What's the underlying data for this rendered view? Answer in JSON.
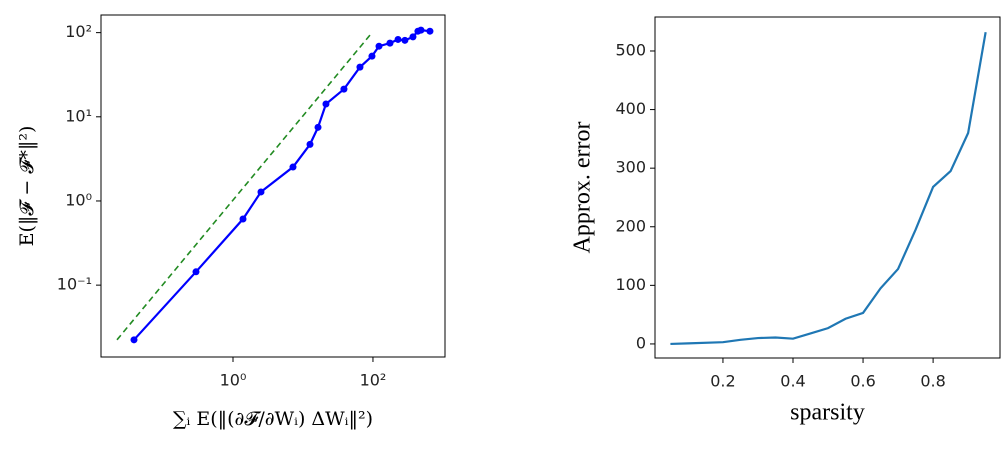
{
  "chart_data": [
    {
      "type": "line",
      "xscale": "log",
      "yscale": "log",
      "ylabel": "E(‖𝓕 − 𝓕*‖²)",
      "xlabel": "∑ᵢ E(‖(∂𝓕/∂Wᵢ) ΔWᵢ‖²)",
      "xlim": [
        0.013,
        1070
      ],
      "ylim": [
        0.014,
        162
      ],
      "xticks": [
        {
          "value": 1,
          "label": "10⁰"
        },
        {
          "value": 100,
          "label": "10²"
        }
      ],
      "yticks": [
        {
          "value": 0.1,
          "label": "10⁻¹"
        },
        {
          "value": 1,
          "label": "10⁰"
        },
        {
          "value": 10,
          "label": "10¹"
        },
        {
          "value": 100,
          "label": "10²"
        }
      ],
      "series": [
        {
          "color": "#0000ff",
          "marker": true,
          "x": [
            0.0385,
            0.296,
            1.39,
            2.51,
            7.2,
            12.6,
            16.4,
            21.3,
            38.5,
            65.2,
            96.8,
            122,
            175,
            228,
            286,
            373,
            439,
            485,
            652
          ],
          "values": [
            0.0224,
            0.144,
            0.61,
            1.28,
            2.53,
            4.7,
            7.5,
            14.2,
            21.3,
            38.9,
            52.5,
            69,
            75,
            83,
            81,
            89,
            104,
            107,
            104
          ]
        },
        {
          "color": "#228b22",
          "dash": true,
          "x": [
            0.022,
            97
          ],
          "values": [
            0.0224,
            100
          ]
        }
      ]
    },
    {
      "type": "line",
      "xlabel": "sparsity",
      "ylabel": "Approx. error",
      "xlim": [
        0.006,
        0.991
      ],
      "ylim": [
        -24,
        558
      ],
      "xticks": [
        0.2,
        0.4,
        0.6,
        0.8
      ],
      "yticks": [
        0,
        100,
        200,
        300,
        400,
        500
      ],
      "series": [
        {
          "color": "#1f77b4",
          "x": [
            0.05,
            0.1,
            0.2,
            0.25,
            0.3,
            0.35,
            0.4,
            0.45,
            0.5,
            0.55,
            0.6,
            0.65,
            0.7,
            0.75,
            0.8,
            0.85,
            0.9,
            0.95
          ],
          "values": [
            0,
            1,
            3,
            7,
            10,
            11,
            9,
            18,
            27,
            43,
            53,
            95,
            128,
            195,
            268,
            295,
            360,
            532
          ]
        }
      ]
    }
  ]
}
